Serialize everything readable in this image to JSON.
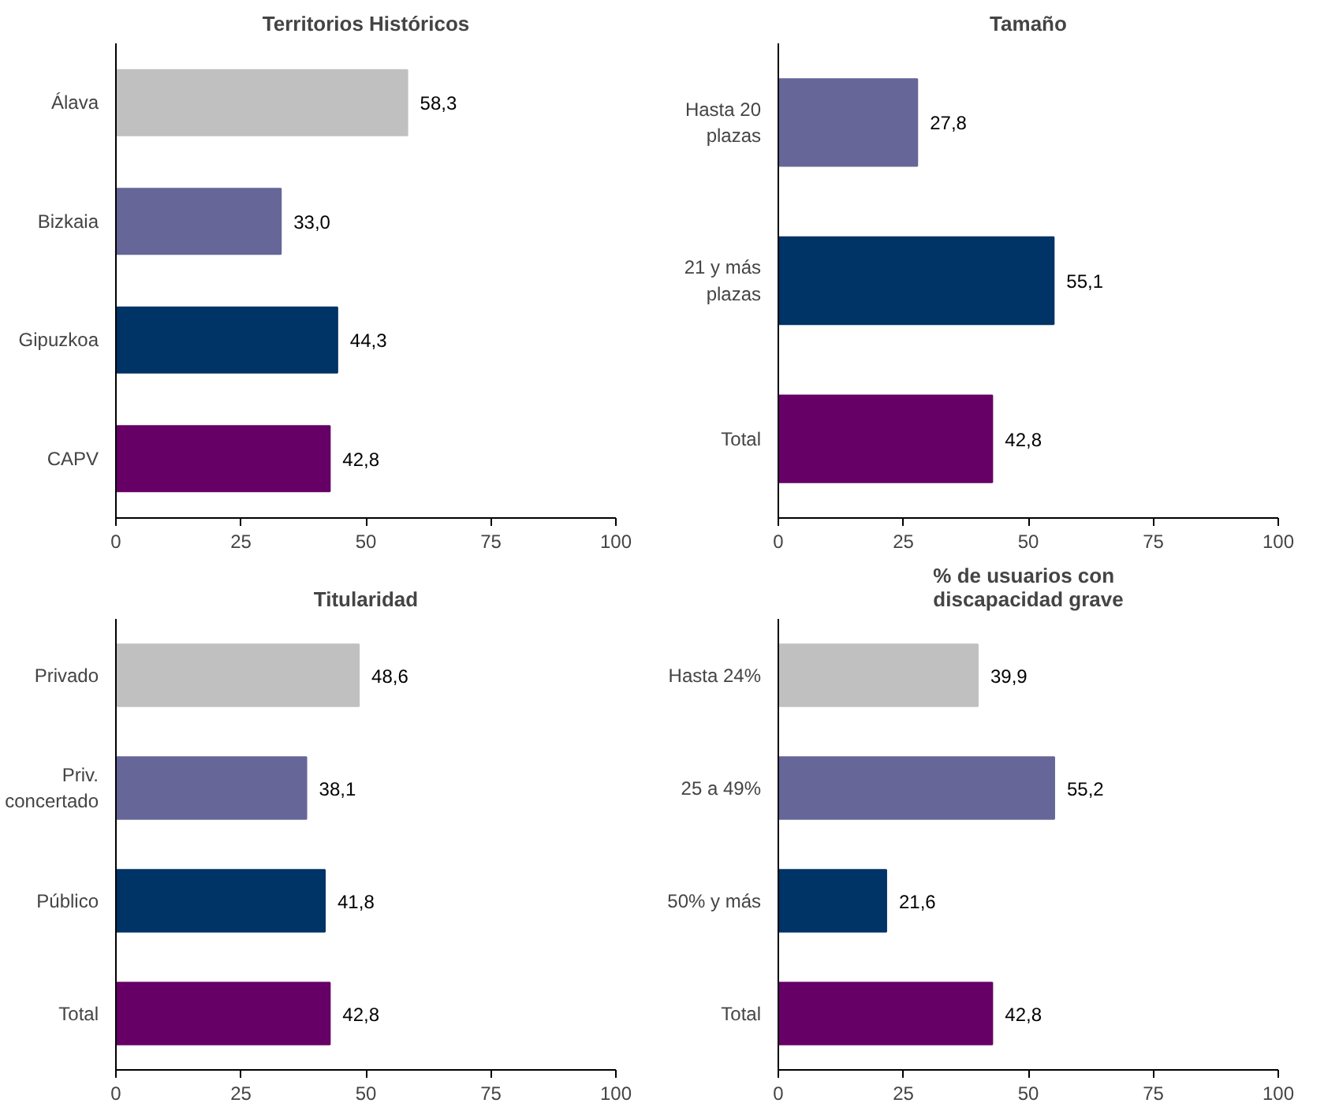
{
  "chart_data": [
    {
      "type": "bar",
      "orientation": "horizontal",
      "title": "Territorios Históricos",
      "categories": [
        "Álava",
        "Bizkaia",
        "Gipuzkoa",
        "CAPV"
      ],
      "values": [
        58.3,
        33.0,
        44.3,
        42.8
      ],
      "colors": [
        "#c0c0c0",
        "#666699",
        "#003366",
        "#660066"
      ],
      "value_labels": [
        "58,3",
        "33,0",
        "44,3",
        "42,8"
      ],
      "xlim": [
        0,
        100
      ],
      "xticks": [
        0,
        25,
        50,
        75,
        100
      ],
      "grid": false
    },
    {
      "type": "bar",
      "orientation": "horizontal",
      "title": "Tamaño",
      "categories": [
        "Hasta 20 plazas",
        "21 y más plazas",
        "Total"
      ],
      "values": [
        27.8,
        55.1,
        42.8
      ],
      "colors": [
        "#666699",
        "#003366",
        "#660066"
      ],
      "value_labels": [
        "27,8",
        "55,1",
        "42,8"
      ],
      "xlim": [
        0,
        100
      ],
      "xticks": [
        0,
        25,
        50,
        75,
        100
      ],
      "grid": false
    },
    {
      "type": "bar",
      "orientation": "horizontal",
      "title": "Titularidad",
      "categories": [
        "Privado",
        "Priv. concertado",
        "Público",
        "Total"
      ],
      "values": [
        48.6,
        38.1,
        41.8,
        42.8
      ],
      "colors": [
        "#c0c0c0",
        "#666699",
        "#003366",
        "#660066"
      ],
      "value_labels": [
        "48,6",
        "38,1",
        "41,8",
        "42,8"
      ],
      "xlim": [
        0,
        100
      ],
      "xticks": [
        0,
        25,
        50,
        75,
        100
      ],
      "grid": false
    },
    {
      "type": "bar",
      "orientation": "horizontal",
      "title": "% de usuarios con discapacidad grave",
      "categories": [
        "Hasta 24%",
        "25 a 49%",
        "50% y más",
        "Total"
      ],
      "values": [
        39.9,
        55.2,
        21.6,
        42.8
      ],
      "colors": [
        "#c0c0c0",
        "#666699",
        "#003366",
        "#660066"
      ],
      "value_labels": [
        "39,9",
        "55,2",
        "21,6",
        "42,8"
      ],
      "xlim": [
        0,
        100
      ],
      "xticks": [
        0,
        25,
        50,
        75,
        100
      ],
      "grid": false
    }
  ]
}
